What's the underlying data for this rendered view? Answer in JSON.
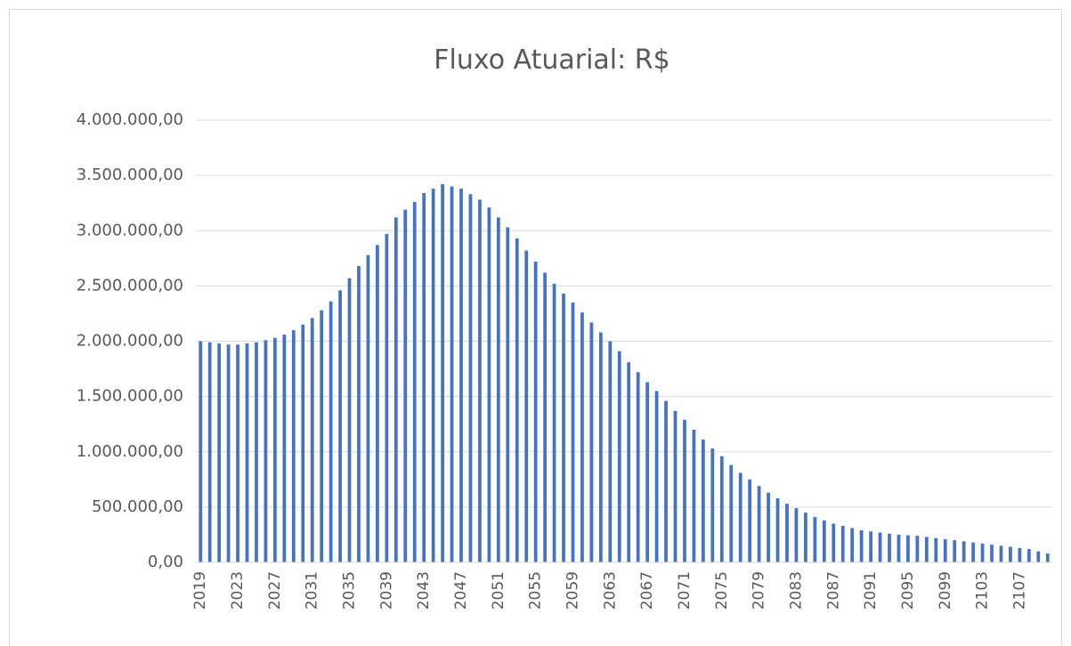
{
  "chart_data": {
    "type": "bar",
    "title": "Fluxo Atuarial: R$",
    "categories": [
      "2019",
      null,
      null,
      null,
      "2023",
      null,
      null,
      null,
      "2027",
      null,
      null,
      null,
      "2031",
      null,
      null,
      null,
      "2035",
      null,
      null,
      null,
      "2039",
      null,
      null,
      null,
      "2043",
      null,
      null,
      null,
      "2047",
      null,
      null,
      null,
      "2051",
      null,
      null,
      null,
      "2055",
      null,
      null,
      null,
      "2059",
      null,
      null,
      null,
      "2063",
      null,
      null,
      null,
      "2067",
      null,
      null,
      null,
      "2071",
      null,
      null,
      null,
      "2075",
      null,
      null,
      null,
      "2079",
      null,
      null,
      null,
      "2083",
      null,
      null,
      null,
      "2087",
      null,
      null,
      null,
      "2091",
      null,
      null,
      null,
      "2095",
      null,
      null,
      null,
      "2099",
      null,
      null,
      null,
      "2103",
      null,
      null,
      null,
      "2107",
      null,
      null,
      null
    ],
    "values": [
      2000000,
      1990000,
      1980000,
      1970000,
      1970000,
      1980000,
      1990000,
      2010000,
      2030000,
      2060000,
      2100000,
      2150000,
      2210000,
      2280000,
      2360000,
      2460000,
      2570000,
      2680000,
      2780000,
      2870000,
      2970000,
      3120000,
      3190000,
      3260000,
      3340000,
      3380000,
      3420000,
      3400000,
      3380000,
      3330000,
      3280000,
      3210000,
      3120000,
      3030000,
      2930000,
      2820000,
      2720000,
      2620000,
      2520000,
      2430000,
      2350000,
      2260000,
      2170000,
      2080000,
      2000000,
      1910000,
      1810000,
      1720000,
      1630000,
      1550000,
      1460000,
      1370000,
      1290000,
      1200000,
      1110000,
      1030000,
      960000,
      880000,
      810000,
      750000,
      690000,
      630000,
      580000,
      530000,
      490000,
      450000,
      410000,
      380000,
      350000,
      330000,
      310000,
      290000,
      280000,
      270000,
      260000,
      250000,
      245000,
      240000,
      230000,
      220000,
      210000,
      200000,
      190000,
      180000,
      170000,
      160000,
      150000,
      140000,
      130000,
      120000,
      100000,
      80000
    ],
    "color": "#4472c4",
    "ylim": [
      0,
      4000000
    ],
    "yticks": [
      {
        "value": 0,
        "label": "0,00"
      },
      {
        "value": 500000,
        "label": "500.000,00"
      },
      {
        "value": 1000000,
        "label": "1.000.000,00"
      },
      {
        "value": 1500000,
        "label": "1.500.000,00"
      },
      {
        "value": 2000000,
        "label": "2.000.000,00"
      },
      {
        "value": 2500000,
        "label": "2.500.000,00"
      },
      {
        "value": 3000000,
        "label": "3.000.000,00"
      },
      {
        "value": 3500000,
        "label": "3.500.000,00"
      },
      {
        "value": 4000000,
        "label": "4.000.000,00"
      }
    ],
    "grid": true
  }
}
